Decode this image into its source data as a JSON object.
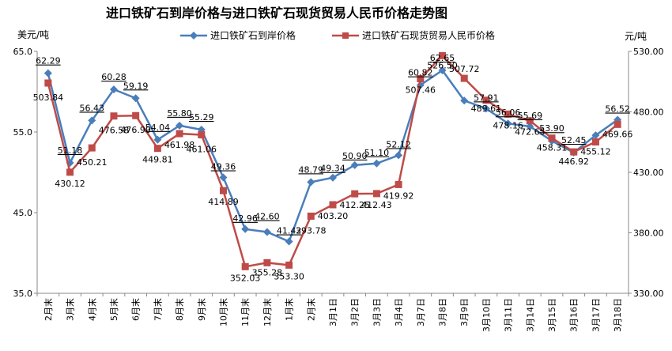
{
  "chart_data": {
    "type": "line",
    "title": "进口铁矿石到岸价格与进口铁矿石现货贸易人民币价格走势图",
    "left_axis": {
      "label": "美元/吨",
      "min": 35,
      "max": 65,
      "ticks": [
        "35.0",
        "45.0",
        "55.0",
        "65.0"
      ]
    },
    "right_axis": {
      "label": "元/吨",
      "min": 330,
      "max": 530,
      "ticks": [
        "330.00",
        "380.00",
        "430.00",
        "480.00",
        "530.00"
      ]
    },
    "categories": [
      "2月末",
      "3月末",
      "4月末",
      "5月末",
      "6月末",
      "7月末",
      "8月末",
      "9月末",
      "10月末",
      "11月末",
      "12月末",
      "1月末",
      "2月末",
      "3月1日",
      "3月2日",
      "3月3日",
      "3月4日",
      "3月7日",
      "3月8日",
      "3月9日",
      "3月10日",
      "3月11日",
      "3月14日",
      "3月15日",
      "3月16日",
      "3月17日",
      "3月18日"
    ],
    "series": [
      {
        "name": "进口铁矿石到岸价格",
        "axis": "left",
        "color": "#4a7ebb",
        "marker": "diamond",
        "values": [
          62.29,
          51.18,
          56.43,
          60.28,
          59.19,
          54.04,
          55.8,
          55.29,
          49.36,
          42.96,
          42.6,
          41.42,
          48.79,
          49.34,
          50.9,
          51.1,
          52.12,
          60.82,
          62.65,
          58.9,
          57.91,
          56.06,
          55.69,
          53.9,
          52.45,
          54.6,
          56.52
        ],
        "labels": [
          "62.29",
          "51.18",
          "56.43",
          "60.28",
          "59.19",
          "54.04",
          "55.80",
          "55.29",
          "49.36",
          "42.96",
          "42.60",
          "41.42",
          "48.79",
          "49.34",
          "50.90",
          "51.10",
          "52.12",
          "60.82",
          "62.65",
          "",
          "57.91",
          "56.06",
          "55.69",
          "53.90",
          "52.45",
          "",
          "56.52"
        ]
      },
      {
        "name": "进口铁矿石现货贸易人民币价格",
        "axis": "right",
        "color": "#be4b48",
        "marker": "square",
        "values": [
          503.84,
          430.12,
          450.21,
          476.58,
          476.9,
          449.81,
          461.98,
          461.06,
          414.89,
          352.03,
          355.28,
          353.3,
          393.78,
          403.2,
          412.25,
          412.43,
          419.92,
          507.46,
          526.5,
          507.72,
          489.61,
          478.16,
          472.65,
          458.31,
          446.92,
          455.12,
          469.66
        ],
        "labels": [
          "503.84",
          "430.12",
          "450.21",
          "476.58",
          "476.90",
          "449.81",
          "461.98",
          "461.06",
          "414.89",
          "352.03",
          "355.28",
          "353.30",
          "393.78",
          "403.20",
          "412.25",
          "412.43",
          "419.92",
          "507.46",
          "526.50",
          "507.72",
          "489.61",
          "478.16",
          "472.65",
          "458.31",
          "446.92",
          "455.12",
          "469.66"
        ]
      }
    ],
    "legend_position": "top",
    "grid": false
  }
}
